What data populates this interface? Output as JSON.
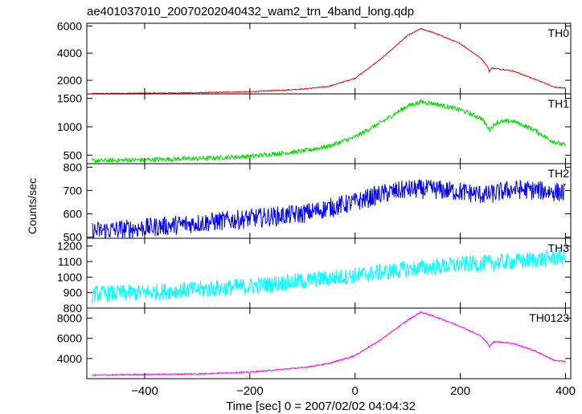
{
  "chart_data": {
    "type": "line",
    "title": "ae401037010_20070202040432_wam2_trn_4band_long.qdp",
    "xlabel": "Time [sec] 0 = 2007/02/02 04:04:32",
    "ylabel": "Counts/sec",
    "xlim": [
      -510,
      410
    ],
    "x_ticks": [
      -400,
      -200,
      0,
      200,
      400
    ],
    "x_tick_labels": [
      "−400",
      "−200",
      "0",
      "200",
      "400"
    ],
    "panels": [
      {
        "name": "TH0",
        "color": "#ff0000",
        "ylim": [
          1000,
          6200
        ],
        "y_ticks": [
          2000,
          4000,
          6000
        ],
        "noise": 35,
        "points": [
          [
            -500,
            1020
          ],
          [
            -300,
            1080
          ],
          [
            -200,
            1160
          ],
          [
            -100,
            1350
          ],
          [
            -50,
            1550
          ],
          [
            0,
            2150
          ],
          [
            50,
            3600
          ],
          [
            100,
            5300
          ],
          [
            125,
            5800
          ],
          [
            150,
            5500
          ],
          [
            200,
            4700
          ],
          [
            240,
            3600
          ],
          [
            252,
            3000
          ],
          [
            255,
            2650
          ],
          [
            260,
            2900
          ],
          [
            300,
            2700
          ],
          [
            340,
            2100
          ],
          [
            380,
            1500
          ],
          [
            400,
            1420
          ]
        ]
      },
      {
        "name": "TH1",
        "color": "#00e000",
        "ylim": [
          350,
          1580
        ],
        "y_ticks": [
          500,
          1000,
          1500
        ],
        "noise": 40,
        "points": [
          [
            -500,
            400
          ],
          [
            -300,
            440
          ],
          [
            -200,
            480
          ],
          [
            -100,
            570
          ],
          [
            -50,
            660
          ],
          [
            0,
            820
          ],
          [
            50,
            1080
          ],
          [
            100,
            1370
          ],
          [
            125,
            1440
          ],
          [
            150,
            1410
          ],
          [
            200,
            1300
          ],
          [
            240,
            1150
          ],
          [
            252,
            1000
          ],
          [
            255,
            950
          ],
          [
            270,
            1080
          ],
          [
            300,
            1100
          ],
          [
            340,
            950
          ],
          [
            370,
            770
          ],
          [
            400,
            670
          ]
        ]
      },
      {
        "name": "TH2",
        "color": "#0000ff",
        "ylim": [
          495,
          815
        ],
        "y_ticks": [
          500,
          600,
          700,
          800
        ],
        "noise": 42,
        "points": [
          [
            -500,
            525
          ],
          [
            -400,
            540
          ],
          [
            -200,
            580
          ],
          [
            -100,
            600
          ],
          [
            0,
            650
          ],
          [
            50,
            685
          ],
          [
            100,
            705
          ],
          [
            150,
            705
          ],
          [
            200,
            695
          ],
          [
            250,
            680
          ],
          [
            300,
            705
          ],
          [
            350,
            700
          ],
          [
            400,
            690
          ]
        ]
      },
      {
        "name": "TH3",
        "color": "#00ffff",
        "ylim": [
          800,
          1250
        ],
        "y_ticks": [
          800,
          900,
          1000,
          1100,
          1200
        ],
        "noise": 55,
        "points": [
          [
            -500,
            890
          ],
          [
            -400,
            900
          ],
          [
            -200,
            940
          ],
          [
            0,
            1010
          ],
          [
            100,
            1050
          ],
          [
            200,
            1080
          ],
          [
            300,
            1100
          ],
          [
            400,
            1130
          ]
        ]
      },
      {
        "name": "TH0123",
        "color": "#ff00ff",
        "ylim": [
          2000,
          9000
        ],
        "y_ticks": [
          4000,
          6000,
          8000
        ],
        "noise": 60,
        "points": [
          [
            -500,
            2350
          ],
          [
            -300,
            2480
          ],
          [
            -200,
            2650
          ],
          [
            -100,
            3100
          ],
          [
            -50,
            3500
          ],
          [
            0,
            4300
          ],
          [
            50,
            5900
          ],
          [
            100,
            7800
          ],
          [
            125,
            8600
          ],
          [
            150,
            8200
          ],
          [
            200,
            7200
          ],
          [
            240,
            6200
          ],
          [
            252,
            5500
          ],
          [
            255,
            5200
          ],
          [
            265,
            5700
          ],
          [
            300,
            5500
          ],
          [
            340,
            4800
          ],
          [
            380,
            3800
          ],
          [
            400,
            3700
          ]
        ]
      }
    ],
    "grid": false,
    "legend": "none"
  }
}
